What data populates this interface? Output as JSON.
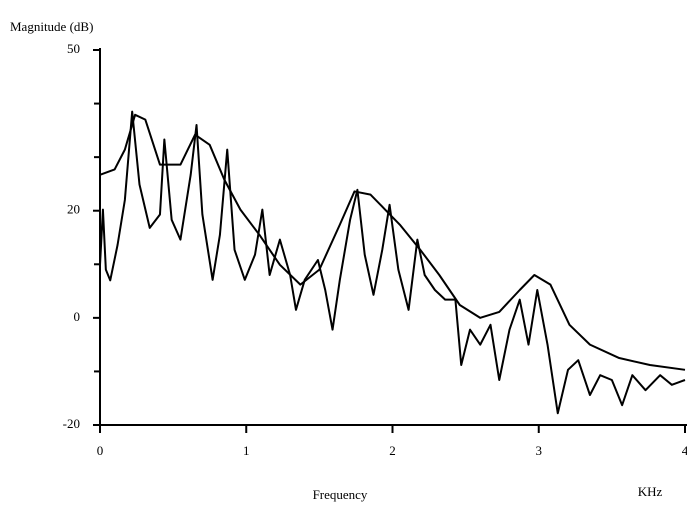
{
  "chart_data": {
    "type": "line",
    "y_label": "Magnitude (dB)",
    "x_label": "Frequency",
    "x_unit": "KHz",
    "xlim": [
      0,
      4
    ],
    "xticks": [
      0,
      1,
      2,
      3,
      4
    ],
    "ylim": [
      -20,
      50
    ],
    "yticks": [
      -20,
      0,
      20,
      50
    ],
    "minor_yticks": [
      -10,
      10,
      30,
      40
    ],
    "series": [
      {
        "color": "#000000",
        "x": [
          0,
          0.1,
          0.17,
          0.24,
          0.31,
          0.41,
          0.55,
          0.65,
          0.75,
          0.85,
          0.96,
          1.09,
          1.23,
          1.37,
          1.5,
          1.64,
          1.74,
          1.85,
          1.95,
          2.05,
          2.19,
          2.32,
          2.46,
          2.6,
          2.73,
          2.87,
          2.97,
          3.08,
          3.21,
          3.35,
          3.55,
          3.76,
          4.0
        ],
        "values": [
          26.7,
          27.7,
          31.4,
          37.9,
          37.0,
          28.6,
          28.6,
          34.2,
          32.3,
          25.8,
          20.2,
          15.5,
          9.9,
          6.2,
          9.0,
          17.4,
          23.6,
          23.0,
          20.2,
          17.4,
          12.7,
          8.0,
          2.4,
          0,
          1.1,
          5.2,
          8.0,
          6.2,
          -1.3,
          -5.0,
          -7.5,
          -8.8,
          -9.7
        ]
      },
      {
        "color": "#000000",
        "x": [
          0,
          0.02,
          0.04,
          0.07,
          0.12,
          0.17,
          0.22,
          0.27,
          0.34,
          0.41,
          0.44,
          0.49,
          0.55,
          0.62,
          0.66,
          0.7,
          0.77,
          0.82,
          0.87,
          0.92,
          0.99,
          1.06,
          1.11,
          1.16,
          1.23,
          1.3,
          1.34,
          1.4,
          1.49,
          1.54,
          1.59,
          1.64,
          1.71,
          1.76,
          1.81,
          1.87,
          1.93,
          1.98,
          2.04,
          2.11,
          2.17,
          2.22,
          2.29,
          2.36,
          2.43,
          2.47,
          2.53,
          2.6,
          2.67,
          2.73,
          2.8,
          2.87,
          2.93,
          2.99,
          3.06,
          3.13,
          3.2,
          3.27,
          3.35,
          3.42,
          3.5,
          3.57,
          3.64,
          3.73,
          3.83,
          3.91,
          4.0
        ],
        "values": [
          9.9,
          20.2,
          9.0,
          7.0,
          13.6,
          22.0,
          38.5,
          24.9,
          16.8,
          19.3,
          33.3,
          18.3,
          14.6,
          26.7,
          36.0,
          19.3,
          7.1,
          15.5,
          31.4,
          12.7,
          7.1,
          11.8,
          20.2,
          8.0,
          14.6,
          8.0,
          1.5,
          7.1,
          10.8,
          5.2,
          -2.2,
          7.1,
          18.3,
          23.9,
          11.8,
          4.3,
          12.7,
          21.1,
          9.0,
          1.5,
          14.6,
          8.0,
          5.2,
          3.4,
          3.4,
          -8.8,
          -2.2,
          -5.0,
          -1.3,
          -11.6,
          -2.2,
          3.4,
          -5.0,
          5.2,
          -5.0,
          -17.8,
          -9.7,
          -7.9,
          -14.4,
          -10.7,
          -11.6,
          -16.3,
          -10.7,
          -13.5,
          -10.7,
          -12.5,
          -11.6
        ]
      }
    ]
  }
}
